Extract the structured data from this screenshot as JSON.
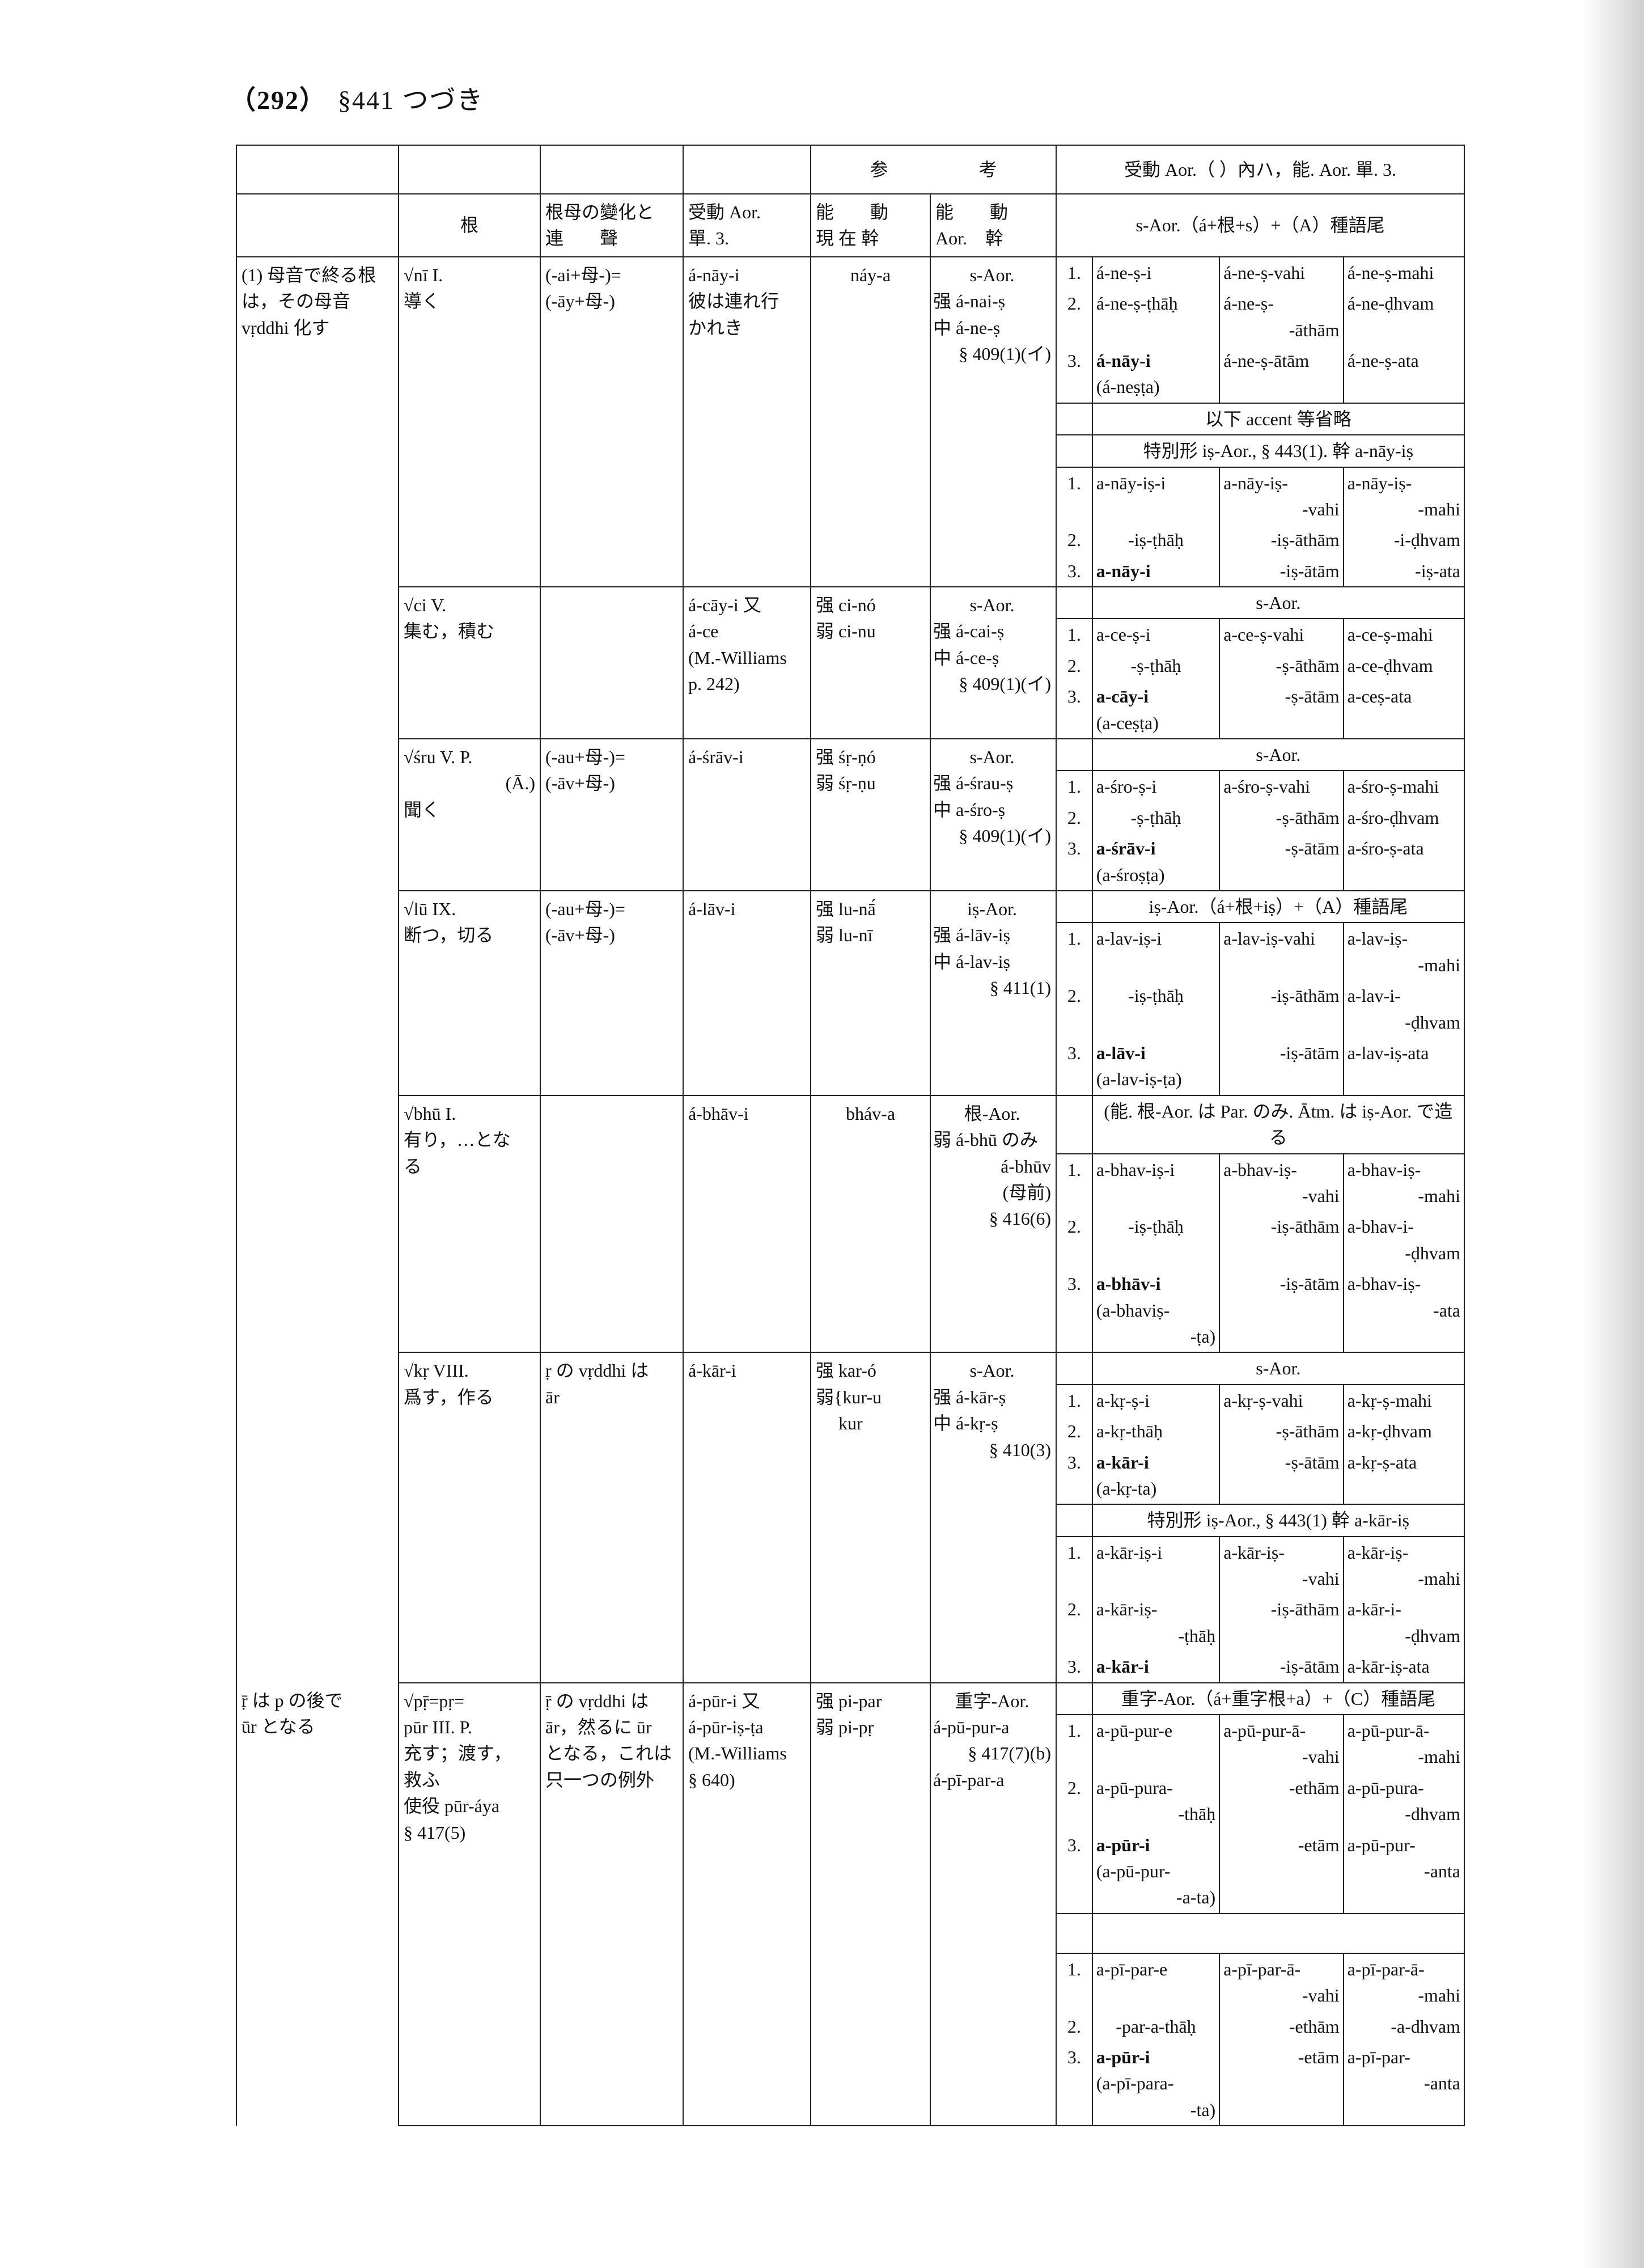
{
  "page": {
    "number": "（292）",
    "section": "§441 つづき"
  },
  "header": {
    "top_reference": "参　　　　　考",
    "top_conj": "受動 Aor.（ ）內ハ，能. Aor. 單. 3.",
    "cols": [
      "",
      "根",
      "根母の變化と\n連　　聲",
      "受動 Aor.\n單. 3.",
      "能　　動\n現 在 幹",
      "能　　動\nAor.　幹",
      "",
      "s-Aor.（á+根+s）+（A）種語尾"
    ]
  },
  "entries": [
    {
      "group": [
        "(1) 母音で終る根",
        "は，その母音",
        "vṛddhi 化す"
      ],
      "root": [
        "√nī I.",
        "導く"
      ],
      "vowel": [
        "(-ai+母-)=",
        "(-āy+母-)"
      ],
      "passive": [
        "á-nāy-i",
        "彼は連れ行",
        "かれき"
      ],
      "present": [
        "náy-a"
      ],
      "aorist": [
        "s-Aor.",
        "强 á-nai-ṣ",
        "中 á-ne-ṣ",
        "§ 409(1)(イ)"
      ],
      "blocks": [
        {
          "rows": [
            {
              "num": "1.",
              "cells": [
                [
                  "á-ne-ṣ-i"
                ],
                [
                  "á-ne-ṣ-vahi"
                ],
                [
                  "á-ne-ṣ-mahi"
                ]
              ]
            },
            {
              "num": "2.",
              "cells": [
                [
                  "á-ne-ṣ-ṭhāḥ"
                ],
                [
                  "á-ne-ṣ-",
                  "-āthām"
                ],
                [
                  "á-ne-ḍhvam"
                ]
              ]
            },
            {
              "num": "3.",
              "cells": [
                [
                  "á-nāy-i",
                  "(á-neṣṭa)"
                ],
                [
                  "á-ne-ṣ-ātām"
                ],
                [
                  "á-ne-ṣ-ata"
                ]
              ]
            }
          ]
        },
        {
          "header": "以下 accent 等省略"
        },
        {
          "header": "特別形 iṣ-Aor., § 443(1). 幹 a-nāy-iṣ",
          "rows": [
            {
              "num": "1.",
              "cells": [
                [
                  "a-nāy-iṣ-i"
                ],
                [
                  "a-nāy-iṣ-",
                  "-vahi"
                ],
                [
                  "a-nāy-iṣ-",
                  "-mahi"
                ]
              ]
            },
            {
              "num": "2.",
              "cells": [
                [
                  "-iṣ-ṭhāḥ"
                ],
                [
                  "-iṣ-āthām"
                ],
                [
                  "-i-ḍhvam"
                ]
              ]
            },
            {
              "num": "3.",
              "cells": [
                [
                  "a-nāy-i"
                ],
                [
                  "-iṣ-ātām"
                ],
                [
                  "-iṣ-ata"
                ]
              ]
            }
          ]
        }
      ]
    },
    {
      "group": [],
      "root": [
        "√ci V.",
        "集む，積む"
      ],
      "vowel": [],
      "passive": [
        "á-cāy-i 又",
        "á-ce",
        "(M.-Williams",
        "p. 242)"
      ],
      "present": [
        "强 ci-nó",
        "弱 ci-nu"
      ],
      "aorist": [
        "s-Aor.",
        "强 á-cai-ṣ",
        "中 á-ce-ṣ",
        "§ 409(1)(イ)"
      ],
      "blocks": [
        {
          "header": "s-Aor.",
          "rows": [
            {
              "num": "1.",
              "cells": [
                [
                  "a-ce-ṣ-i"
                ],
                [
                  "a-ce-ṣ-vahi"
                ],
                [
                  "a-ce-ṣ-mahi"
                ]
              ]
            },
            {
              "num": "2.",
              "cells": [
                [
                  "-ṣ-ṭhāḥ"
                ],
                [
                  "-ṣ-āthām"
                ],
                [
                  "a-ce-ḍhvam"
                ]
              ]
            },
            {
              "num": "3.",
              "cells": [
                [
                  "a-cāy-i",
                  "(a-ceṣṭa)"
                ],
                [
                  "-ṣ-ātām"
                ],
                [
                  "a-ceṣ-ata"
                ]
              ]
            }
          ]
        }
      ]
    },
    {
      "group": [],
      "root": [
        "√śru V. P.",
        "(Ā.)",
        "聞く"
      ],
      "vowel": [
        "(-au+母-)=",
        "(-āv+母-)"
      ],
      "passive": [
        "á-śrāv-i"
      ],
      "present": [
        "强 śṛ-ṇó",
        "弱 śṛ-ṇu"
      ],
      "aorist": [
        "s-Aor.",
        "强 á-śrau-ṣ",
        "中 a-śro-ṣ",
        "§ 409(1)(イ)"
      ],
      "blocks": [
        {
          "header": "s-Aor.",
          "rows": [
            {
              "num": "1.",
              "cells": [
                [
                  "a-śro-ṣ-i"
                ],
                [
                  "a-śro-ṣ-vahi"
                ],
                [
                  "a-śro-ṣ-mahi"
                ]
              ]
            },
            {
              "num": "2.",
              "cells": [
                [
                  "-ṣ-ṭhāḥ"
                ],
                [
                  "-ṣ-āthām"
                ],
                [
                  "a-śro-ḍhvam"
                ]
              ]
            },
            {
              "num": "3.",
              "cells": [
                [
                  "a-śrāv-i",
                  "(a-śroṣṭa)"
                ],
                [
                  "-ṣ-ātām"
                ],
                [
                  "a-śro-ṣ-ata"
                ]
              ]
            }
          ]
        }
      ]
    },
    {
      "group": [],
      "root": [
        "√lū IX.",
        "断つ，切る"
      ],
      "vowel": [
        "(-au+母-)=",
        "(-āv+母-)"
      ],
      "passive": [
        "á-lāv-i"
      ],
      "present": [
        "强 lu-nā́",
        "弱 lu-nī"
      ],
      "aorist": [
        "iṣ-Aor.",
        "强 á-lāv-iṣ",
        "中 á-lav-iṣ",
        "§ 411(1)"
      ],
      "blocks": [
        {
          "header": "iṣ-Aor.（á+根+iṣ）+（A）種語尾",
          "rows": [
            {
              "num": "1.",
              "cells": [
                [
                  "a-lav-iṣ-i"
                ],
                [
                  "a-lav-iṣ-vahi"
                ],
                [
                  "a-lav-iṣ-",
                  "-mahi"
                ]
              ]
            },
            {
              "num": "2.",
              "cells": [
                [
                  "-iṣ-ṭhāḥ"
                ],
                [
                  "-iṣ-āthām"
                ],
                [
                  "a-lav-i-",
                  "-ḍhvam"
                ]
              ]
            },
            {
              "num": "3.",
              "cells": [
                [
                  "a-lāv-i",
                  "(a-lav-iṣ-ṭa)"
                ],
                [
                  "-iṣ-ātām"
                ],
                [
                  "a-lav-iṣ-ata"
                ]
              ]
            }
          ]
        }
      ]
    },
    {
      "group": [],
      "root": [
        "√bhū I.",
        "有り，…とな",
        "る"
      ],
      "vowel": [],
      "passive": [
        "á-bhāv-i"
      ],
      "present": [
        "bháv-a"
      ],
      "aorist": [
        "根-Aor.",
        "弱 á-bhū のみ",
        "á-bhūv",
        "(母前)",
        "§ 416(6)"
      ],
      "blocks": [
        {
          "header": "(能. 根-Aor. は Par. のみ. Ātm. は iṣ-Aor. で造る",
          "rows": [
            {
              "num": "1.",
              "cells": [
                [
                  "a-bhav-iṣ-i"
                ],
                [
                  "a-bhav-iṣ-",
                  "-vahi"
                ],
                [
                  "a-bhav-iṣ-",
                  "-mahi"
                ]
              ]
            },
            {
              "num": "2.",
              "cells": [
                [
                  "-iṣ-ṭhāḥ"
                ],
                [
                  "-iṣ-āthām"
                ],
                [
                  "a-bhav-i-",
                  "-ḍhvam"
                ]
              ]
            },
            {
              "num": "3.",
              "cells": [
                [
                  "a-bhāv-i",
                  "(a-bhaviṣ-",
                  "-ṭa)"
                ],
                [
                  "-iṣ-ātām"
                ],
                [
                  "a-bhav-iṣ-",
                  "-ata"
                ]
              ]
            }
          ]
        }
      ]
    },
    {
      "group": [],
      "root": [
        "√kṛ VIII.",
        "爲す，作る"
      ],
      "vowel": [
        "ṛ の vṛddhi は",
        "ār"
      ],
      "passive": [
        "á-kār-i"
      ],
      "present": [
        "强 kar-ó",
        "弱{kur-u",
        "　 kur"
      ],
      "aorist": [
        "s-Aor.",
        "强 á-kār-ṣ",
        "中 á-kṛ-ṣ",
        "§ 410(3)"
      ],
      "blocks": [
        {
          "header": "s-Aor.",
          "rows": [
            {
              "num": "1.",
              "cells": [
                [
                  "a-kṛ-ṣ-i"
                ],
                [
                  "a-kṛ-ṣ-vahi"
                ],
                [
                  "a-kṛ-ṣ-mahi"
                ]
              ]
            },
            {
              "num": "2.",
              "cells": [
                [
                  "a-kṛ-thāḥ"
                ],
                [
                  "-ṣ-āthām"
                ],
                [
                  "a-kṛ-ḍhvam"
                ]
              ]
            },
            {
              "num": "3.",
              "cells": [
                [
                  "a-kār-i",
                  "(a-kṛ-ta)"
                ],
                [
                  "-ṣ-ātām"
                ],
                [
                  "a-kṛ-ṣ-ata"
                ]
              ]
            }
          ]
        },
        {
          "header": "特別形 iṣ-Aor., § 443(1) 幹 a-kār-iṣ",
          "rows": [
            {
              "num": "1.",
              "cells": [
                [
                  "a-kār-iṣ-i"
                ],
                [
                  "a-kār-iṣ-",
                  "-vahi"
                ],
                [
                  "a-kār-iṣ-",
                  "-mahi"
                ]
              ]
            },
            {
              "num": "2.",
              "cells": [
                [
                  "a-kār-iṣ-",
                  "-ṭhāḥ"
                ],
                [
                  "-iṣ-āthām"
                ],
                [
                  "a-kār-i-",
                  "-ḍhvam"
                ]
              ]
            },
            {
              "num": "3.",
              "cells": [
                [
                  "a-kār-i"
                ],
                [
                  "-iṣ-ātām"
                ],
                [
                  "a-kār-iṣ-ata"
                ]
              ]
            }
          ]
        }
      ]
    },
    {
      "group": [
        "ṝ は p の後で",
        "ūr となる"
      ],
      "root": [
        "√pṝ=pṛ=",
        "pūr III. P.",
        "充す；渡す，",
        "救ふ",
        "使役 pūr-áya",
        "§ 417(5)"
      ],
      "vowel": [
        "ṝ の vṛddhi は",
        "ār，然るに ūr",
        "となる，これは",
        "只一つの例外"
      ],
      "passive": [
        "á-pūr-i 又",
        "á-pūr-iṣ-ṭa",
        "(M.-Williams",
        "§ 640)"
      ],
      "present": [
        "强 pi-par",
        "弱 pi-pṛ"
      ],
      "aorist": [
        "重字-Aor.",
        "á-pū-pur-a",
        "§ 417(7)(b)",
        "á-pī-par-a"
      ],
      "blocks": [
        {
          "header": "重字-Aor.（á+重字根+a）+（C）種語尾",
          "rows": [
            {
              "num": "1.",
              "cells": [
                [
                  "a-pū-pur-e"
                ],
                [
                  "a-pū-pur-ā-",
                  "-vahi"
                ],
                [
                  "a-pū-pur-ā-",
                  "-mahi"
                ]
              ]
            },
            {
              "num": "2.",
              "cells": [
                [
                  "a-pū-pura-",
                  "-thāḥ"
                ],
                [
                  "-ethām"
                ],
                [
                  "a-pū-pura-",
                  "-dhvam"
                ]
              ]
            },
            {
              "num": "3.",
              "cells": [
                [
                  "a-pūr-i",
                  "(a-pū-pur-",
                  "-a-ta)"
                ],
                [
                  "-etām"
                ],
                [
                  "a-pū-pur-",
                  "-anta"
                ]
              ]
            }
          ]
        },
        {
          "header": "",
          "rows": [
            {
              "num": "1.",
              "cells": [
                [
                  "a-pī-par-e"
                ],
                [
                  "a-pī-par-ā-",
                  "-vahi"
                ],
                [
                  "a-pī-par-ā-",
                  "-mahi"
                ]
              ]
            },
            {
              "num": "2.",
              "cells": [
                [
                  "-par-a-thāḥ"
                ],
                [
                  "-ethām"
                ],
                [
                  "-a-dhvam"
                ]
              ]
            },
            {
              "num": "3.",
              "cells": [
                [
                  "a-pūr-i",
                  "(a-pī-para-",
                  "-ta)"
                ],
                [
                  "-etām"
                ],
                [
                  "a-pī-par-",
                  "-anta"
                ]
              ]
            }
          ]
        }
      ]
    }
  ]
}
